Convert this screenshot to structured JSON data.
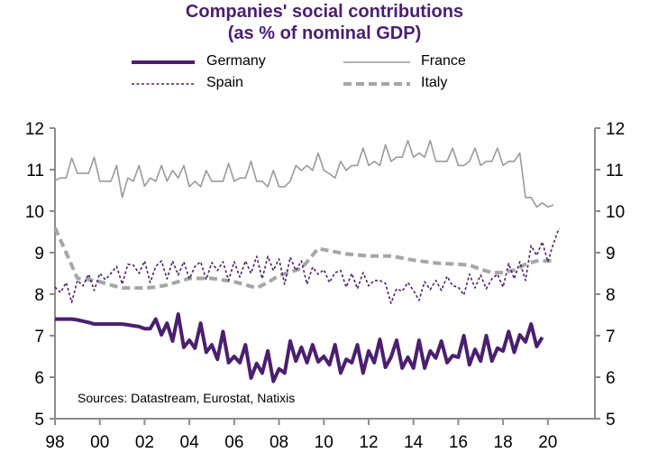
{
  "chart_data": {
    "type": "line",
    "title": "Companies' social contributions",
    "subtitle": "(as % of nominal GDP)",
    "xlabel": "",
    "ylabel": "",
    "ylim": [
      5,
      12
    ],
    "xlim": [
      1998,
      2022.1
    ],
    "grid": false,
    "legend_position": "top",
    "y_ticks": [
      "5",
      "6",
      "7",
      "8",
      "9",
      "10",
      "11",
      "12"
    ],
    "x_ticks": [
      "98",
      "00",
      "02",
      "04",
      "06",
      "08",
      "10",
      "12",
      "14",
      "16",
      "18",
      "20"
    ],
    "x_tick_values": [
      1998,
      2000,
      2002,
      2004,
      2006,
      2008,
      2010,
      2012,
      2014,
      2016,
      2018,
      2020
    ],
    "annotation": "Sources:  Datastream,  Eurostat,  Natixis",
    "frequency": "quarterly",
    "start": 1998.0,
    "step": 0.25,
    "series": [
      {
        "name": "Germany",
        "color": "#4b1f6f",
        "style": "solid-thick",
        "values": [
          7.4,
          7.4,
          7.4,
          7.4,
          7.38,
          7.35,
          7.32,
          7.28,
          7.28,
          7.28,
          7.28,
          7.28,
          7.28,
          7.26,
          7.24,
          7.22,
          7.17,
          7.17,
          7.4,
          7.02,
          7.3,
          6.87,
          7.52,
          6.72,
          6.89,
          6.7,
          7.3,
          6.6,
          6.78,
          6.43,
          7.1,
          6.35,
          6.5,
          6.35,
          6.78,
          5.98,
          6.33,
          6.1,
          6.63,
          5.9,
          6.2,
          6.1,
          6.87,
          6.39,
          6.72,
          6.35,
          6.78,
          6.37,
          6.5,
          6.3,
          6.78,
          6.1,
          6.43,
          6.35,
          6.78,
          6.1,
          6.63,
          6.35,
          6.91,
          6.24,
          6.48,
          6.89,
          6.22,
          6.48,
          6.22,
          6.89,
          6.22,
          6.63,
          6.46,
          6.87,
          6.35,
          6.52,
          6.48,
          7.0,
          6.3,
          6.67,
          6.39,
          7.0,
          6.39,
          6.7,
          6.63,
          7.1,
          6.6,
          7.02,
          6.85,
          7.28,
          6.74,
          6.96
        ]
      },
      {
        "name": "France",
        "color": "#9a9a9a",
        "style": "solid-thin",
        "values": [
          10.74,
          10.8,
          10.8,
          11.28,
          10.91,
          10.91,
          10.91,
          11.3,
          10.72,
          10.72,
          10.72,
          11.1,
          10.33,
          10.8,
          10.72,
          11.1,
          10.6,
          10.8,
          10.72,
          11.1,
          10.72,
          10.98,
          10.8,
          11.1,
          10.59,
          10.72,
          10.59,
          10.98,
          10.72,
          10.72,
          10.72,
          11.15,
          10.72,
          10.8,
          10.8,
          11.2,
          10.72,
          10.72,
          10.59,
          10.98,
          10.59,
          10.59,
          10.72,
          11.1,
          10.98,
          11.1,
          10.98,
          11.4,
          10.98,
          10.9,
          10.8,
          11.2,
          10.98,
          11.1,
          11.1,
          11.52,
          11.1,
          11.2,
          11.1,
          11.6,
          11.2,
          11.3,
          11.3,
          11.7,
          11.3,
          11.4,
          11.3,
          11.7,
          11.2,
          11.2,
          11.2,
          11.52,
          11.1,
          11.1,
          11.2,
          11.52,
          11.1,
          11.2,
          11.2,
          11.52,
          11.1,
          11.2,
          11.2,
          11.4,
          10.33,
          10.33,
          10.1,
          10.2,
          10.1,
          10.15
        ]
      },
      {
        "name": "Spain",
        "color": "#4b1f6f",
        "style": "dotted",
        "values": [
          8.17,
          8.04,
          8.28,
          7.8,
          8.33,
          8.2,
          8.48,
          8.09,
          8.5,
          8.35,
          8.5,
          8.67,
          8.24,
          8.72,
          8.7,
          8.5,
          8.8,
          8.28,
          8.67,
          8.8,
          8.37,
          8.8,
          8.46,
          8.78,
          8.37,
          8.67,
          8.78,
          8.35,
          8.76,
          8.57,
          8.78,
          8.33,
          8.78,
          8.41,
          8.8,
          8.5,
          8.91,
          8.37,
          8.91,
          8.57,
          8.85,
          8.24,
          8.89,
          8.57,
          8.8,
          8.24,
          8.65,
          8.48,
          8.59,
          8.28,
          8.52,
          8.57,
          8.17,
          8.5,
          8.13,
          8.52,
          8.2,
          8.33,
          8.33,
          8.26,
          7.78,
          8.13,
          8.07,
          8.28,
          8.09,
          7.85,
          8.3,
          8.11,
          8.33,
          8.09,
          8.43,
          8.2,
          8.17,
          7.98,
          8.48,
          8.15,
          8.46,
          8.13,
          8.37,
          8.48,
          8.17,
          8.74,
          8.37,
          8.78,
          8.33,
          9.17,
          8.93,
          9.26,
          8.78,
          9.22,
          9.59
        ]
      },
      {
        "name": "Italy",
        "color": "#a6a6a6",
        "style": "dashed-thick",
        "x": [
          1998.0,
          1998.5,
          1999.0,
          1999.5,
          2000.0,
          2000.5,
          2001.0,
          2002.0,
          2002.5,
          2003.0,
          2004.0,
          2005.0,
          2006.0,
          2007.0,
          2007.5,
          2008.0,
          2009.0,
          2009.75,
          2010.5,
          2011.0,
          2012.0,
          2013.0,
          2014.0,
          2015.0,
          2016.0,
          2016.5,
          2017.0,
          2017.5,
          2018.0,
          2018.5,
          2019.0,
          2019.5,
          2020.0,
          2020.25
        ],
        "values": [
          9.6,
          9.0,
          8.38,
          8.35,
          8.3,
          8.22,
          8.15,
          8.15,
          8.17,
          8.22,
          8.38,
          8.38,
          8.3,
          8.15,
          8.28,
          8.45,
          8.62,
          9.1,
          9.02,
          8.97,
          8.92,
          8.92,
          8.82,
          8.75,
          8.72,
          8.7,
          8.6,
          8.52,
          8.52,
          8.58,
          8.72,
          8.8,
          8.8,
          8.8
        ]
      }
    ]
  },
  "legend": {
    "germany": "Germany",
    "france": "France",
    "spain": "Spain",
    "italy": "Italy"
  }
}
